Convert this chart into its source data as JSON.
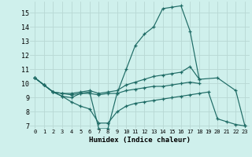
{
  "xlabel": "Humidex (Indice chaleur)",
  "bg_color": "#cff0ec",
  "grid_color": "#b8d8d4",
  "line_color": "#1e6b65",
  "xlim": [
    -0.5,
    23.5
  ],
  "ylim": [
    6.8,
    15.8
  ],
  "yticks": [
    7,
    8,
    9,
    10,
    11,
    12,
    13,
    14,
    15
  ],
  "xticks": [
    0,
    1,
    2,
    3,
    4,
    5,
    6,
    7,
    8,
    9,
    10,
    11,
    12,
    13,
    14,
    15,
    16,
    17,
    18,
    19,
    20,
    21,
    22,
    23
  ],
  "line1_x": [
    0,
    1,
    2,
    3,
    4,
    5,
    6,
    7,
    8,
    9,
    10,
    11,
    12,
    13,
    14,
    15,
    16,
    17,
    18,
    20,
    22,
    23
  ],
  "line1_y": [
    10.4,
    9.9,
    9.4,
    9.1,
    9.0,
    9.3,
    9.4,
    6.8,
    6.8,
    9.3,
    11.0,
    12.7,
    13.5,
    14.0,
    15.3,
    15.4,
    15.5,
    13.7,
    10.3,
    10.4,
    9.5,
    7.0
  ],
  "line2_x": [
    0,
    1,
    2,
    3,
    4,
    5,
    6,
    7,
    8,
    9,
    10,
    11,
    12,
    13,
    14,
    15,
    16,
    17,
    18
  ],
  "line2_y": [
    10.4,
    9.9,
    9.4,
    9.3,
    9.3,
    9.4,
    9.5,
    9.3,
    9.4,
    9.5,
    9.9,
    10.1,
    10.3,
    10.5,
    10.6,
    10.7,
    10.8,
    11.2,
    10.3
  ],
  "line3_x": [
    0,
    1,
    2,
    3,
    4,
    5,
    6,
    7,
    8,
    9,
    10,
    11,
    12,
    13,
    14,
    15,
    16,
    17,
    18
  ],
  "line3_y": [
    10.4,
    9.9,
    9.4,
    9.3,
    9.2,
    9.3,
    9.3,
    9.2,
    9.3,
    9.3,
    9.5,
    9.6,
    9.7,
    9.8,
    9.8,
    9.9,
    10.0,
    10.1,
    10.0
  ],
  "line4_x": [
    0,
    1,
    2,
    3,
    4,
    5,
    6,
    7,
    8,
    9,
    10,
    11,
    12,
    13,
    14,
    15,
    16,
    17,
    18,
    19,
    20,
    21,
    22,
    23
  ],
  "line4_y": [
    10.4,
    9.9,
    9.4,
    9.1,
    8.7,
    8.4,
    8.2,
    7.2,
    7.2,
    8.0,
    8.4,
    8.6,
    8.7,
    8.8,
    8.9,
    9.0,
    9.1,
    9.2,
    9.3,
    9.4,
    7.5,
    7.3,
    7.1,
    7.0
  ]
}
